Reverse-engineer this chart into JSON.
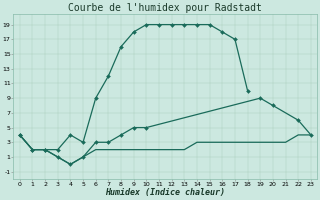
{
  "title": "Courbe de l'humidex pour Radstadt",
  "xlabel": "Humidex (Indice chaleur)",
  "background_color": "#cce8e0",
  "line_color": "#1a6b5a",
  "xlim": [
    -0.5,
    23.5
  ],
  "ylim": [
    -2,
    20.5
  ],
  "xticks": [
    0,
    1,
    2,
    3,
    4,
    5,
    6,
    7,
    8,
    9,
    10,
    11,
    12,
    13,
    14,
    15,
    16,
    17,
    18,
    19,
    20,
    21,
    22,
    23
  ],
  "yticks": [
    -1,
    1,
    3,
    5,
    7,
    9,
    11,
    13,
    15,
    17,
    19
  ],
  "line1_x": [
    0,
    1,
    2,
    3,
    4,
    5,
    6,
    7,
    8,
    9,
    10,
    11,
    12,
    13,
    14,
    15,
    16,
    17,
    18
  ],
  "line1_y": [
    4,
    2,
    2,
    2,
    4,
    3,
    9,
    12,
    16,
    18,
    19,
    19,
    19,
    19,
    19,
    19,
    18,
    17,
    10
  ],
  "line2_x": [
    0,
    1,
    2,
    3,
    4,
    5,
    6,
    7,
    8,
    9,
    10,
    19,
    20,
    22,
    23
  ],
  "line2_y": [
    4,
    2,
    2,
    1,
    0,
    1,
    3,
    3,
    4,
    5,
    5,
    9,
    8,
    6,
    4
  ],
  "line3_x": [
    0,
    1,
    2,
    3,
    4,
    5,
    6,
    7,
    8,
    9,
    10,
    11,
    12,
    13,
    14,
    15,
    16,
    17,
    18,
    19,
    20,
    21,
    22,
    23
  ],
  "line3_y": [
    4,
    2,
    2,
    1,
    0,
    1,
    2,
    2,
    2,
    2,
    2,
    2,
    2,
    2,
    3,
    3,
    3,
    3,
    3,
    3,
    3,
    3,
    4,
    4
  ],
  "title_fontsize": 7,
  "xlabel_fontsize": 6,
  "tick_fontsize": 4.5
}
